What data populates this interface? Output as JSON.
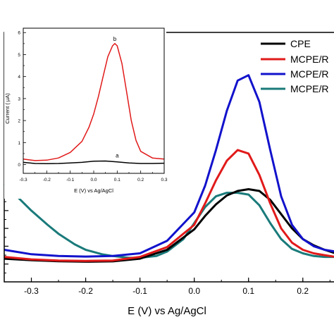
{
  "chart_data": [
    {
      "type": "line",
      "xlabel": "E (V) vs Ag/AgCl",
      "ylabel": "",
      "xlim": [
        -0.35,
        0.26
      ],
      "ylim": [
        0,
        14
      ],
      "x_ticks": [
        -0.3,
        -0.2,
        -0.1,
        0.0,
        0.1,
        0.2
      ],
      "x_tick_labels": [
        "-0.3",
        "-0.2",
        "-0.1",
        "0.0",
        "0.1",
        "0.2"
      ],
      "legend": {
        "position": "top-right",
        "entries": [
          "CPE",
          "MCPE/R",
          "MCPE/R",
          "MCPE/R"
        ]
      },
      "series": [
        {
          "name": "CPE",
          "color": "#000000",
          "x": [
            -0.35,
            -0.3,
            -0.25,
            -0.2,
            -0.15,
            -0.1,
            -0.05,
            0.0,
            0.02,
            0.04,
            0.06,
            0.08,
            0.1,
            0.12,
            0.14,
            0.16,
            0.18,
            0.2,
            0.22,
            0.24,
            0.26
          ],
          "y": [
            1.3,
            1.22,
            1.16,
            1.13,
            1.15,
            1.3,
            1.8,
            2.95,
            3.7,
            4.35,
            4.85,
            5.1,
            5.2,
            5.1,
            4.6,
            3.8,
            3.0,
            2.4,
            2.05,
            1.8,
            1.6
          ]
        },
        {
          "name": "MCPE/R",
          "color": "#e11a1a",
          "x": [
            -0.35,
            -0.3,
            -0.25,
            -0.2,
            -0.15,
            -0.1,
            -0.05,
            0.0,
            0.02,
            0.04,
            0.06,
            0.08,
            0.1,
            0.12,
            0.14,
            0.16,
            0.18,
            0.2,
            0.22,
            0.24,
            0.26
          ],
          "y": [
            1.4,
            1.26,
            1.2,
            1.18,
            1.2,
            1.4,
            1.95,
            3.2,
            4.4,
            5.7,
            6.8,
            7.4,
            7.2,
            6.0,
            4.4,
            3.0,
            2.2,
            1.8,
            1.6,
            1.5,
            1.4
          ]
        },
        {
          "name": "MCPE/R",
          "color": "#1212cc",
          "x": [
            -0.35,
            -0.3,
            -0.25,
            -0.2,
            -0.15,
            -0.1,
            -0.05,
            0.0,
            0.02,
            0.04,
            0.06,
            0.08,
            0.1,
            0.12,
            0.14,
            0.16,
            0.18,
            0.2,
            0.22,
            0.24,
            0.26
          ],
          "y": [
            1.8,
            1.55,
            1.45,
            1.42,
            1.45,
            1.6,
            2.3,
            3.9,
            5.4,
            7.4,
            9.6,
            11.3,
            11.6,
            10.1,
            7.4,
            4.8,
            3.2,
            2.4,
            2.0,
            1.8,
            1.7
          ]
        },
        {
          "name": "MCPE/R",
          "color": "#1a7a7a",
          "x": [
            -0.35,
            -0.33,
            -0.3,
            -0.27,
            -0.25,
            -0.22,
            -0.2,
            -0.17,
            -0.15,
            -0.12,
            -0.1,
            -0.07,
            -0.05,
            -0.02,
            0.0,
            0.02,
            0.04,
            0.06,
            0.08,
            0.1,
            0.12,
            0.14,
            0.16,
            0.18,
            0.2,
            0.22,
            0.24,
            0.26
          ],
          "y": [
            5.5,
            4.9,
            4.0,
            3.2,
            2.7,
            2.1,
            1.8,
            1.55,
            1.45,
            1.35,
            1.35,
            1.45,
            1.7,
            2.4,
            3.3,
            4.2,
            4.8,
            5.0,
            5.0,
            4.9,
            4.3,
            3.3,
            2.4,
            1.85,
            1.6,
            1.45,
            1.4,
            1.4
          ]
        }
      ]
    },
    {
      "type": "line",
      "xlabel": "E (V) vs Ag/AgCl",
      "ylabel": "Current (   μA)",
      "xlim": [
        -0.3,
        0.3
      ],
      "ylim": [
        -0.4,
        6.2
      ],
      "x_ticks": [
        -0.3,
        -0.2,
        -0.1,
        0.0,
        0.1,
        0.2,
        0.3
      ],
      "x_tick_labels": [
        "-0.3",
        "-0.2",
        "-0.1",
        "0.0",
        "0.1",
        "0.2",
        "0.3"
      ],
      "y_ticks": [
        0,
        1,
        2,
        3,
        4,
        5,
        6
      ],
      "y_tick_labels": [
        "0",
        "1",
        "2",
        "3",
        "4",
        "5",
        "6"
      ],
      "series": [
        {
          "name": "",
          "label": "a",
          "color": "#000000",
          "x": [
            -0.3,
            -0.25,
            -0.2,
            -0.15,
            -0.1,
            -0.05,
            0.0,
            0.05,
            0.1,
            0.15,
            0.2,
            0.25,
            0.3
          ],
          "y": [
            0.1,
            0.05,
            0.04,
            0.05,
            0.07,
            0.1,
            0.15,
            0.16,
            0.12,
            0.07,
            0.05,
            0.05,
            0.06
          ]
        },
        {
          "name": "",
          "label": "b",
          "color": "#e11a1a",
          "x": [
            -0.3,
            -0.25,
            -0.2,
            -0.15,
            -0.1,
            -0.05,
            -0.02,
            0.0,
            0.02,
            0.04,
            0.06,
            0.08,
            0.09,
            0.1,
            0.12,
            0.14,
            0.16,
            0.18,
            0.2,
            0.25,
            0.3
          ],
          "y": [
            0.25,
            0.18,
            0.2,
            0.3,
            0.55,
            1.05,
            1.7,
            2.3,
            3.1,
            4.0,
            4.9,
            5.4,
            5.5,
            5.4,
            4.6,
            3.3,
            2.0,
            1.1,
            0.6,
            0.3,
            0.25
          ]
        }
      ],
      "annotations": [
        "a",
        "b"
      ]
    }
  ]
}
